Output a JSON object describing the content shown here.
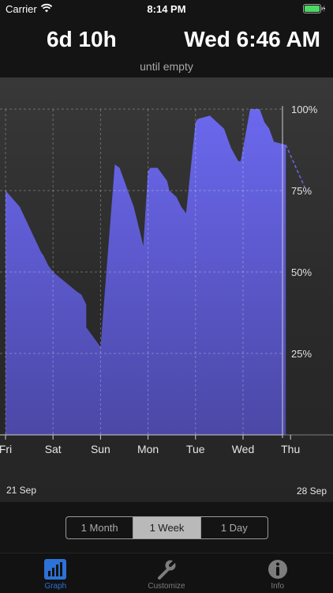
{
  "status_bar": {
    "carrier": "Carrier",
    "time": "8:14 PM"
  },
  "header": {
    "duration_remaining": "6d 10h",
    "empty_time": "Wed 6:46 AM",
    "subtitle": "until empty"
  },
  "chart_data": {
    "type": "area",
    "title": "",
    "xlabel": "",
    "ylabel": "",
    "x_tick_labels": [
      "Fri",
      "Sat",
      "Sun",
      "Mon",
      "Tue",
      "Wed",
      "Thu"
    ],
    "y_tick_labels": [
      "25%",
      "50%",
      "75%",
      "100%"
    ],
    "ylim": [
      0,
      100
    ],
    "start_date_label": "21 Sep",
    "end_date_label": "28 Sep",
    "grid": true,
    "fill_color": "#6b68ee",
    "series": [
      {
        "values_x_days": [
          0.0,
          0.3,
          0.75,
          0.8,
          0.9,
          1.0,
          1.5,
          1.6,
          1.7,
          1.7,
          2.0,
          2.3,
          2.4,
          2.7,
          2.75,
          2.8,
          2.9,
          3.0,
          3.05,
          3.2,
          3.4,
          3.45,
          3.6,
          3.7,
          3.8,
          4.0,
          4.05,
          4.3,
          4.6,
          4.65,
          4.75,
          4.9,
          4.95,
          5.15,
          5.2,
          5.35,
          5.4,
          5.45,
          5.55,
          5.65,
          5.9
        ],
        "values_percent": [
          75,
          70,
          56,
          55,
          52,
          50,
          44,
          43,
          40,
          33,
          27,
          83,
          82,
          70,
          67,
          64,
          58,
          81,
          82,
          82,
          78,
          75,
          73,
          70,
          68,
          96,
          97,
          98,
          94,
          92,
          88,
          84,
          84,
          100,
          100,
          100,
          98,
          96,
          94,
          90,
          89
        ]
      },
      {
        "name": "",
        "projected_x_days": [
          5.9,
          6.3
        ],
        "projected_percent": [
          89,
          76
        ]
      }
    ]
  },
  "range_selector": {
    "options": [
      "1 Month",
      "1 Week",
      "1 Day"
    ],
    "selected": "1 Week"
  },
  "tab_bar": {
    "items": [
      {
        "label": "Graph",
        "icon": "bar-chart-icon",
        "active": true
      },
      {
        "label": "Customize",
        "icon": "wrench-icon",
        "active": false
      },
      {
        "label": "Info",
        "icon": "info-icon",
        "active": false
      }
    ],
    "active_color": "#2d72d6"
  }
}
